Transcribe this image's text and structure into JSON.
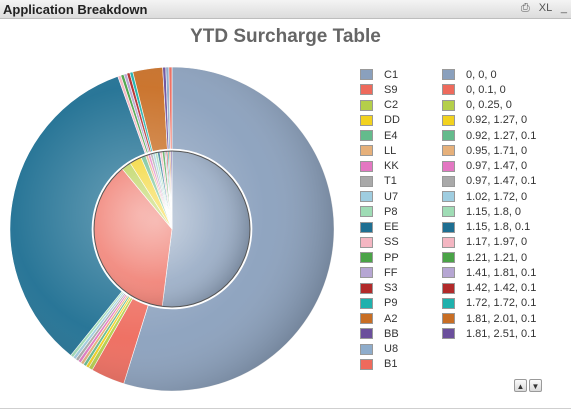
{
  "window": {
    "title": "Application Breakdown",
    "tools": {
      "print_label": "⎙",
      "excel_label": "XL",
      "minimize_label": "_"
    }
  },
  "chart_data": {
    "type": "pie",
    "title": "YTD Surcharge Table",
    "style": "donut with inner pie",
    "legend_position": "right",
    "outer_ring": {
      "name": "",
      "categories": [
        "C1",
        "S9",
        "C2",
        "DD",
        "E4",
        "LL",
        "KK",
        "T1",
        "U7",
        "P8",
        "EE",
        "SS",
        "PP",
        "FF",
        "S3",
        "P9",
        "A2",
        "BB",
        "U8",
        "B1"
      ],
      "values": [
        53.5,
        3.3,
        0.4,
        0.3,
        0.3,
        0.3,
        0.3,
        0.3,
        0.3,
        0.3,
        33.0,
        0.3,
        0.3,
        0.3,
        0.3,
        0.3,
        2.9,
        0.3,
        0.3,
        0.3
      ],
      "colors": [
        "#8aa0bd",
        "#ee6a5c",
        "#b4cf4a",
        "#f2d21e",
        "#64bb8c",
        "#e6b07a",
        "#e377c2",
        "#a9a9a9",
        "#9fcde0",
        "#9fdcb5",
        "#1e6f92",
        "#f4b6c2",
        "#4aa347",
        "#b6a6d3",
        "#b22a2a",
        "#1fb1ad",
        "#c86e24",
        "#6b4f9c",
        "#8eaccb",
        "#ee6a5c"
      ]
    },
    "inner_pie": {
      "name": "",
      "categories": [
        "0, 0, 0",
        "0, 0.1, 0",
        "0, 0.25, 0",
        "0.92, 1.27, 0",
        "0.92, 1.27, 0.1",
        "0.95, 1.71, 0",
        "0.97, 1.47, 0",
        "0.97, 1.47, 0.1",
        "1.02, 1.72, 0",
        "1.15, 1.8, 0",
        "1.15, 1.8, 0.1",
        "1.17, 1.97, 0",
        "1.21, 1.21, 0",
        "1.41, 1.81, 0.1",
        "1.42, 1.42, 0.1",
        "1.72, 1.72, 0.1",
        "1.81, 2.01, 0.1",
        "1.81, 2.51, 0.1"
      ],
      "values": [
        52.0,
        37.0,
        2.0,
        2.5,
        1.0,
        0.5,
        0.5,
        0.5,
        0.5,
        0.5,
        0.5,
        0.5,
        0.5,
        0.3,
        0.3,
        0.3,
        0.3,
        0.3
      ],
      "colors": [
        "#8aa0bd",
        "#ee6a5c",
        "#b4cf4a",
        "#f2d21e",
        "#64bb8c",
        "#e6b07a",
        "#e377c2",
        "#a9a9a9",
        "#9fcde0",
        "#9fdcb5",
        "#1e6f92",
        "#f4b6c2",
        "#4aa347",
        "#b6a6d3",
        "#b22a2a",
        "#1fb1ad",
        "#c86e24",
        "#6b4f9c"
      ]
    }
  },
  "scroll": {
    "up_label": "▲",
    "down_label": "▼"
  }
}
